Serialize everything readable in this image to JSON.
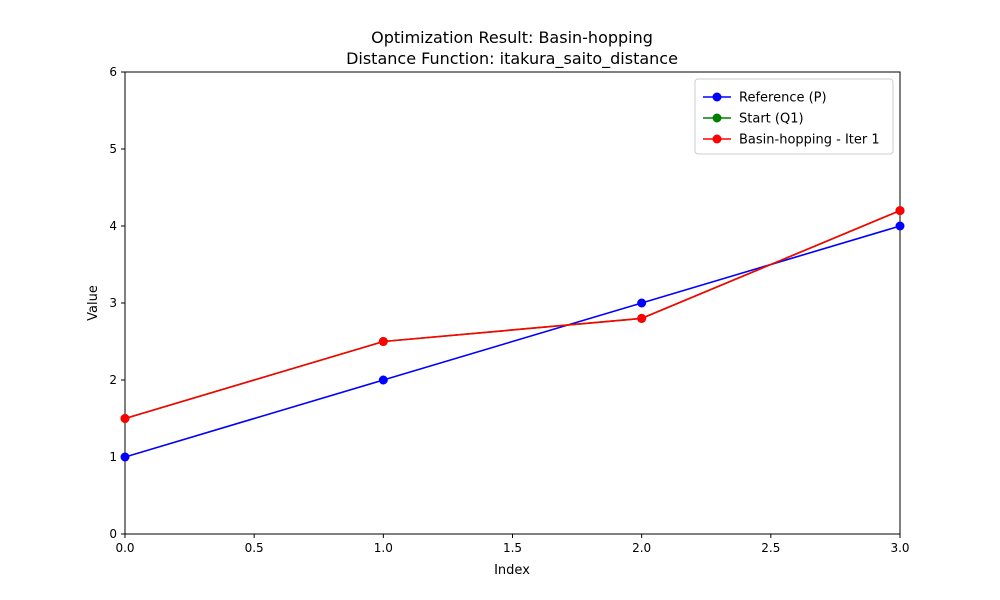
{
  "chart_data": {
    "type": "line",
    "title": [
      "Optimization Result: Basin-hopping",
      "Distance Function: itakura_saito_distance"
    ],
    "xlabel": "Index",
    "ylabel": "Value",
    "xlim": [
      0,
      3
    ],
    "ylim": [
      0,
      6
    ],
    "xticks": [
      0.0,
      0.5,
      1.0,
      1.5,
      2.0,
      2.5,
      3.0
    ],
    "xtick_labels": [
      "0.0",
      "0.5",
      "1.0",
      "1.5",
      "2.0",
      "2.5",
      "3.0"
    ],
    "yticks": [
      0,
      1,
      2,
      3,
      4,
      5,
      6
    ],
    "ytick_labels": [
      "0",
      "1",
      "2",
      "3",
      "4",
      "5",
      "6"
    ],
    "grid": false,
    "legend_position": "top-right",
    "series": [
      {
        "name": "Reference (P)",
        "color": "#0000ff",
        "marker": "circle",
        "x": [
          0,
          1,
          2,
          3
        ],
        "y": [
          1.0,
          2.0,
          3.0,
          4.0
        ]
      },
      {
        "name": "Start (Q1)",
        "color": "#008000",
        "marker": "circle",
        "x": [
          0,
          1,
          2,
          3
        ],
        "y": [
          1.5,
          2.5,
          2.8,
          4.2
        ]
      },
      {
        "name": "Basin-hopping - Iter 1",
        "color": "#ff0000",
        "marker": "circle",
        "x": [
          0,
          1,
          2,
          3
        ],
        "y": [
          1.5,
          2.5,
          2.8,
          4.2
        ]
      }
    ]
  }
}
